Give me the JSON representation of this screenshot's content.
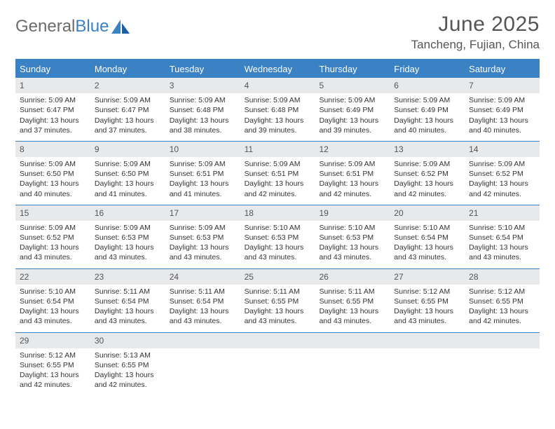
{
  "brand": {
    "part1": "General",
    "part2": "Blue"
  },
  "title": "June 2025",
  "location": "Tancheng, Fujian, China",
  "colors": {
    "accent": "#3b82c4",
    "header_bg": "#3b82c4",
    "daynum_bg": "#e7e9eb",
    "text": "#333333",
    "muted": "#555555"
  },
  "day_labels": [
    "Sunday",
    "Monday",
    "Tuesday",
    "Wednesday",
    "Thursday",
    "Friday",
    "Saturday"
  ],
  "weeks": [
    [
      {
        "n": "1",
        "sr": "Sunrise: 5:09 AM",
        "ss": "Sunset: 6:47 PM",
        "dl": "Daylight: 13 hours and 37 minutes."
      },
      {
        "n": "2",
        "sr": "Sunrise: 5:09 AM",
        "ss": "Sunset: 6:47 PM",
        "dl": "Daylight: 13 hours and 37 minutes."
      },
      {
        "n": "3",
        "sr": "Sunrise: 5:09 AM",
        "ss": "Sunset: 6:48 PM",
        "dl": "Daylight: 13 hours and 38 minutes."
      },
      {
        "n": "4",
        "sr": "Sunrise: 5:09 AM",
        "ss": "Sunset: 6:48 PM",
        "dl": "Daylight: 13 hours and 39 minutes."
      },
      {
        "n": "5",
        "sr": "Sunrise: 5:09 AM",
        "ss": "Sunset: 6:49 PM",
        "dl": "Daylight: 13 hours and 39 minutes."
      },
      {
        "n": "6",
        "sr": "Sunrise: 5:09 AM",
        "ss": "Sunset: 6:49 PM",
        "dl": "Daylight: 13 hours and 40 minutes."
      },
      {
        "n": "7",
        "sr": "Sunrise: 5:09 AM",
        "ss": "Sunset: 6:49 PM",
        "dl": "Daylight: 13 hours and 40 minutes."
      }
    ],
    [
      {
        "n": "8",
        "sr": "Sunrise: 5:09 AM",
        "ss": "Sunset: 6:50 PM",
        "dl": "Daylight: 13 hours and 40 minutes."
      },
      {
        "n": "9",
        "sr": "Sunrise: 5:09 AM",
        "ss": "Sunset: 6:50 PM",
        "dl": "Daylight: 13 hours and 41 minutes."
      },
      {
        "n": "10",
        "sr": "Sunrise: 5:09 AM",
        "ss": "Sunset: 6:51 PM",
        "dl": "Daylight: 13 hours and 41 minutes."
      },
      {
        "n": "11",
        "sr": "Sunrise: 5:09 AM",
        "ss": "Sunset: 6:51 PM",
        "dl": "Daylight: 13 hours and 42 minutes."
      },
      {
        "n": "12",
        "sr": "Sunrise: 5:09 AM",
        "ss": "Sunset: 6:51 PM",
        "dl": "Daylight: 13 hours and 42 minutes."
      },
      {
        "n": "13",
        "sr": "Sunrise: 5:09 AM",
        "ss": "Sunset: 6:52 PM",
        "dl": "Daylight: 13 hours and 42 minutes."
      },
      {
        "n": "14",
        "sr": "Sunrise: 5:09 AM",
        "ss": "Sunset: 6:52 PM",
        "dl": "Daylight: 13 hours and 42 minutes."
      }
    ],
    [
      {
        "n": "15",
        "sr": "Sunrise: 5:09 AM",
        "ss": "Sunset: 6:52 PM",
        "dl": "Daylight: 13 hours and 43 minutes."
      },
      {
        "n": "16",
        "sr": "Sunrise: 5:09 AM",
        "ss": "Sunset: 6:53 PM",
        "dl": "Daylight: 13 hours and 43 minutes."
      },
      {
        "n": "17",
        "sr": "Sunrise: 5:09 AM",
        "ss": "Sunset: 6:53 PM",
        "dl": "Daylight: 13 hours and 43 minutes."
      },
      {
        "n": "18",
        "sr": "Sunrise: 5:10 AM",
        "ss": "Sunset: 6:53 PM",
        "dl": "Daylight: 13 hours and 43 minutes."
      },
      {
        "n": "19",
        "sr": "Sunrise: 5:10 AM",
        "ss": "Sunset: 6:53 PM",
        "dl": "Daylight: 13 hours and 43 minutes."
      },
      {
        "n": "20",
        "sr": "Sunrise: 5:10 AM",
        "ss": "Sunset: 6:54 PM",
        "dl": "Daylight: 13 hours and 43 minutes."
      },
      {
        "n": "21",
        "sr": "Sunrise: 5:10 AM",
        "ss": "Sunset: 6:54 PM",
        "dl": "Daylight: 13 hours and 43 minutes."
      }
    ],
    [
      {
        "n": "22",
        "sr": "Sunrise: 5:10 AM",
        "ss": "Sunset: 6:54 PM",
        "dl": "Daylight: 13 hours and 43 minutes."
      },
      {
        "n": "23",
        "sr": "Sunrise: 5:11 AM",
        "ss": "Sunset: 6:54 PM",
        "dl": "Daylight: 13 hours and 43 minutes."
      },
      {
        "n": "24",
        "sr": "Sunrise: 5:11 AM",
        "ss": "Sunset: 6:54 PM",
        "dl": "Daylight: 13 hours and 43 minutes."
      },
      {
        "n": "25",
        "sr": "Sunrise: 5:11 AM",
        "ss": "Sunset: 6:55 PM",
        "dl": "Daylight: 13 hours and 43 minutes."
      },
      {
        "n": "26",
        "sr": "Sunrise: 5:11 AM",
        "ss": "Sunset: 6:55 PM",
        "dl": "Daylight: 13 hours and 43 minutes."
      },
      {
        "n": "27",
        "sr": "Sunrise: 5:12 AM",
        "ss": "Sunset: 6:55 PM",
        "dl": "Daylight: 13 hours and 43 minutes."
      },
      {
        "n": "28",
        "sr": "Sunrise: 5:12 AM",
        "ss": "Sunset: 6:55 PM",
        "dl": "Daylight: 13 hours and 42 minutes."
      }
    ],
    [
      {
        "n": "29",
        "sr": "Sunrise: 5:12 AM",
        "ss": "Sunset: 6:55 PM",
        "dl": "Daylight: 13 hours and 42 minutes."
      },
      {
        "n": "30",
        "sr": "Sunrise: 5:13 AM",
        "ss": "Sunset: 6:55 PM",
        "dl": "Daylight: 13 hours and 42 minutes."
      },
      {
        "empty": true
      },
      {
        "empty": true
      },
      {
        "empty": true
      },
      {
        "empty": true
      },
      {
        "empty": true
      }
    ]
  ]
}
